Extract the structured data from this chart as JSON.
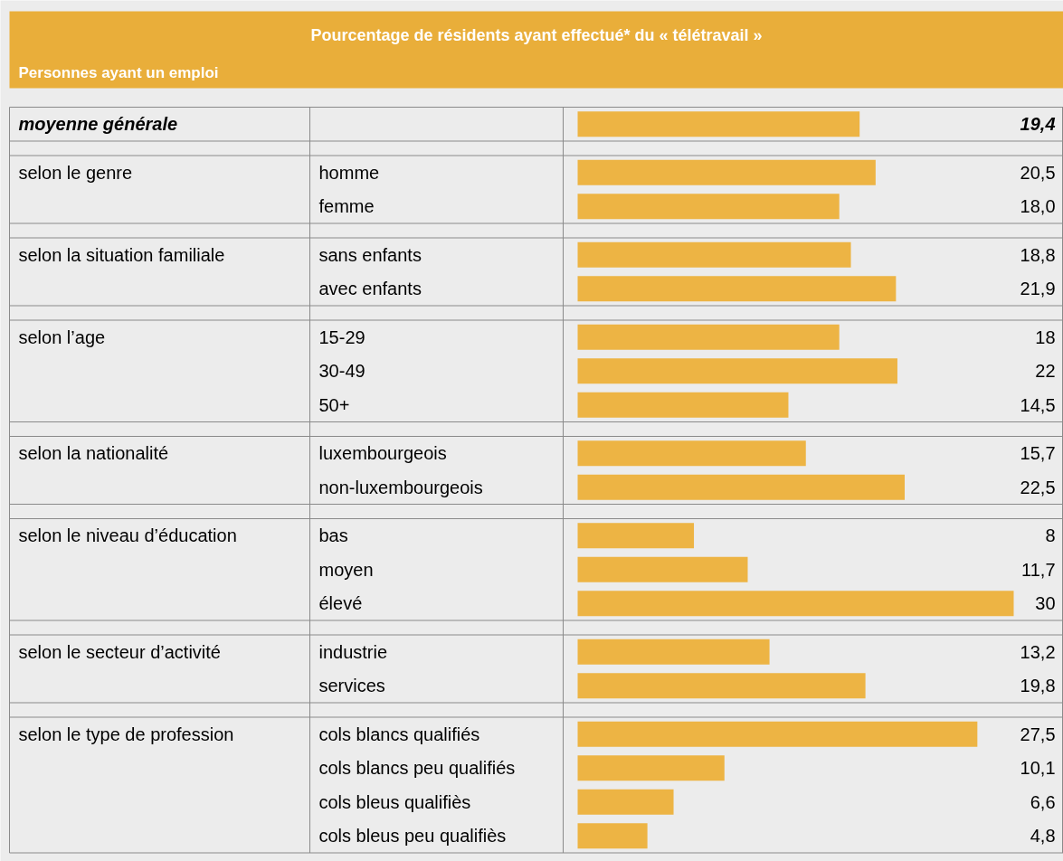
{
  "chart_data": {
    "type": "bar",
    "orientation": "horizontal",
    "title": "Pourcentage de résidents ayant effectué* du « télétravail »",
    "subtitle": "Personnes ayant un emploi",
    "categories": [
      null,
      null,
      "homme",
      "femme",
      null,
      "sans enfants",
      "avec enfants",
      null,
      "15-29",
      "30-49",
      "50+",
      null,
      "luxembourgeois",
      "non-luxembourgeois",
      null,
      "bas",
      "moyen",
      "élevé",
      null,
      "industrie",
      "services",
      null,
      "cols blancs qualifiés",
      "cols blancs peu qualifiés",
      "cols bleus qualifiès",
      "cols bleus peu qualifiès"
    ],
    "values": [
      19.4,
      null,
      20.5,
      18.0,
      null,
      18.8,
      21.9,
      null,
      18,
      22,
      14.5,
      null,
      15.7,
      22.5,
      null,
      8,
      11.7,
      30,
      null,
      13.2,
      19.8,
      null,
      27.5,
      10.1,
      6.6,
      4.8
    ],
    "value_labels": [
      "19,4",
      null,
      "20,5",
      "18,0",
      null,
      "18,8",
      "21,9",
      null,
      "18",
      "22",
      "14,5",
      null,
      "15,7",
      "22,5",
      null,
      "8",
      "11,7",
      "30",
      null,
      "13,2",
      "19,8",
      null,
      "27,5",
      "10,1",
      "6,6",
      "4,8"
    ],
    "color": "#edb444",
    "annotations": [
      "moyenne générale",
      "selon le genre",
      "selon la situation familiale",
      "selon l’age",
      "selon la nationalité",
      "selon le niveau d’éducation",
      "selon le secteur d’activité",
      "selon le type de profession"
    ],
    "tick_labels": false,
    "grid": "y",
    "legend": false
  }
}
